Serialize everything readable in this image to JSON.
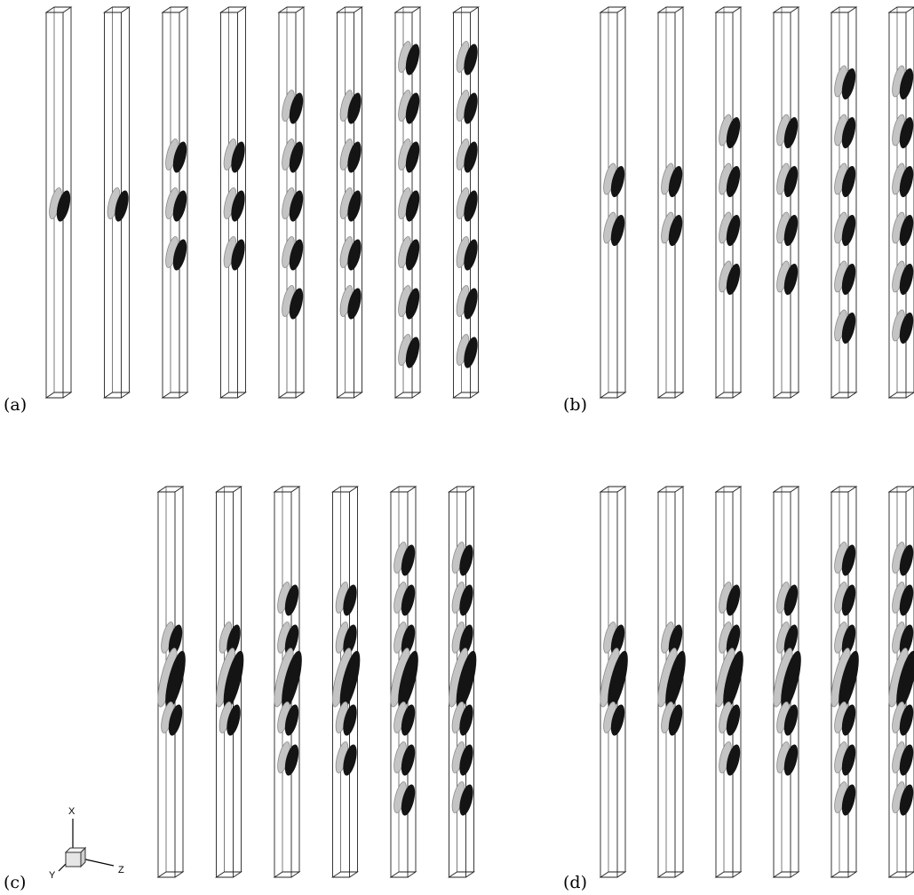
{
  "panels": [
    {
      "label": "(a)",
      "columns": [
        [
          0
        ],
        [
          0
        ],
        [
          -1,
          0,
          1
        ],
        [
          -1,
          0,
          1
        ],
        [
          -2,
          -1,
          0,
          1,
          2
        ],
        [
          -2,
          -1,
          0,
          1,
          2
        ],
        [
          -3,
          -2,
          -1,
          0,
          1,
          2,
          3
        ],
        [
          -3,
          -2,
          -1,
          0,
          1,
          2,
          3
        ]
      ]
    },
    {
      "label": "(b)",
      "columns": [
        [
          -0.5,
          0.5
        ],
        [
          -0.5,
          0.5
        ],
        [
          -1.5,
          -0.5,
          0.5,
          1.5
        ],
        [
          -1.5,
          -0.5,
          0.5,
          1.5
        ],
        [
          -2.5,
          -1.5,
          -0.5,
          0.5,
          1.5,
          2.5
        ],
        [
          -2.5,
          -1.5,
          -0.5,
          0.5,
          1.5,
          2.5
        ]
      ]
    },
    {
      "label": "(c)",
      "columns": [
        [
          -1,
          0,
          1
        ],
        [
          -1,
          0,
          1
        ],
        [
          -2,
          -1,
          0,
          1,
          2
        ],
        [
          -2,
          -1,
          0,
          1,
          2
        ],
        [
          -3,
          -2,
          -1,
          0,
          1,
          2,
          3
        ],
        [
          -3,
          -2,
          -1,
          0,
          1,
          2,
          3
        ]
      ]
    },
    {
      "label": "(d)",
      "columns": [
        [
          -1,
          0,
          1
        ],
        [
          -1,
          0,
          1
        ],
        [
          -2,
          -1,
          0,
          1,
          2
        ],
        [
          -2,
          -1,
          0,
          1,
          2
        ],
        [
          -3,
          -2,
          -1,
          0,
          1,
          2,
          3
        ],
        [
          -3,
          -2,
          -1,
          0,
          1,
          2,
          3
        ]
      ]
    }
  ],
  "axes": {
    "x": "X",
    "y": "Y",
    "z": "Z"
  },
  "colors": {
    "light_vortex": "#c4c4c4",
    "dark_vortex": "#141414",
    "outline": "#222222"
  }
}
